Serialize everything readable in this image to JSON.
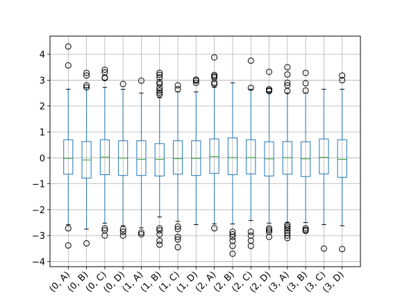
{
  "chart_data": {
    "type": "box",
    "categories": [
      "(0, A)",
      "(0, B)",
      "(0, C)",
      "(0, D)",
      "(1, A)",
      "(1, B)",
      "(1, C)",
      "(1, D)",
      "(2, A)",
      "(2, B)",
      "(2, C)",
      "(2, D)",
      "(3, A)",
      "(3, B)",
      "(3, C)",
      "(3, D)"
    ],
    "yticks": [
      "4",
      "3",
      "2",
      "1",
      "0",
      "−1",
      "−2",
      "−3",
      "−4"
    ],
    "ytick_values": [
      4,
      3,
      2,
      1,
      0,
      -1,
      -2,
      -3,
      -4
    ],
    "ylim": [
      -4.2,
      4.7
    ],
    "grid": true,
    "xtick_rotation": -45,
    "colors": {
      "box": "#1f77b4",
      "median": "#2ca02c",
      "whisker": "#000000",
      "flier": "#000000",
      "grid": "#b0b0b0"
    },
    "boxes": [
      {
        "q1": -0.63,
        "median": -0.02,
        "q3": 0.7,
        "whislo": -2.58,
        "whishi": 2.65,
        "fliers": [
          4.3,
          3.57,
          -2.72,
          -3.38
        ]
      },
      {
        "q1": -0.78,
        "median": -0.08,
        "q3": 0.63,
        "whislo": -2.75,
        "whishi": 2.7,
        "fliers": [
          3.28,
          3.18,
          2.8,
          2.72,
          -3.3
        ]
      },
      {
        "q1": -0.65,
        "median": 0.03,
        "q3": 0.7,
        "whislo": -2.52,
        "whishi": 2.72,
        "fliers": [
          3.4,
          3.3,
          3.1,
          3.08,
          -2.72,
          -2.8,
          -3.0
        ]
      },
      {
        "q1": -0.68,
        "median": -0.01,
        "q3": 0.66,
        "whislo": -2.62,
        "whishi": 2.65,
        "fliers": [
          2.85,
          -2.75,
          -2.85,
          -3.0
        ]
      },
      {
        "q1": -0.68,
        "median": -0.06,
        "q3": 0.66,
        "whislo": -2.7,
        "whishi": 2.5,
        "fliers": [
          2.98,
          -2.88,
          -2.95
        ]
      },
      {
        "q1": -0.7,
        "median": -0.06,
        "q3": 0.55,
        "whislo": -2.28,
        "whishi": 2.32,
        "fliers": [
          3.28,
          3.2,
          3.1,
          2.92,
          2.85,
          2.7,
          2.6,
          2.52,
          2.45,
          -2.72,
          -2.8,
          -2.95,
          -3.2,
          -3.35
        ]
      },
      {
        "q1": -0.63,
        "median": -0.03,
        "q3": 0.66,
        "whislo": -2.45,
        "whishi": 2.55,
        "fliers": [
          2.8,
          2.65,
          -2.65,
          -2.75,
          -3.05,
          -3.15,
          -3.45
        ]
      },
      {
        "q1": -0.68,
        "median": -0.02,
        "q3": 0.66,
        "whislo": -2.58,
        "whishi": 2.55,
        "fliers": [
          3.02,
          2.98,
          2.9
        ]
      },
      {
        "q1": -0.6,
        "median": 0.05,
        "q3": 0.73,
        "whislo": -2.55,
        "whishi": 2.72,
        "fliers": [
          3.88,
          3.2,
          3.15,
          3.1,
          2.9,
          2.85,
          -2.72
        ]
      },
      {
        "q1": -0.65,
        "median": 0.01,
        "q3": 0.77,
        "whislo": -2.55,
        "whishi": 2.9,
        "fliers": [
          -2.85,
          -2.95,
          -3.05,
          -3.2,
          -3.4,
          -3.7
        ]
      },
      {
        "q1": -0.62,
        "median": 0.01,
        "q3": 0.7,
        "whislo": -2.42,
        "whishi": 2.65,
        "fliers": [
          3.75,
          2.7,
          -2.85,
          -3.0,
          -3.2,
          -3.4
        ]
      },
      {
        "q1": -0.7,
        "median": -0.04,
        "q3": 0.62,
        "whislo": -2.52,
        "whishi": 2.55,
        "fliers": [
          3.32,
          2.65,
          2.6,
          2.58,
          -2.72,
          -2.78,
          -2.85,
          -3.05
        ]
      },
      {
        "q1": -0.63,
        "median": 0.01,
        "q3": 0.63,
        "whislo": -2.5,
        "whishi": 2.5,
        "fliers": [
          3.5,
          3.22,
          2.9,
          2.8,
          2.58,
          -2.58,
          -2.65,
          -2.72,
          -2.8,
          -2.9,
          -3.0,
          -3.1
        ]
      },
      {
        "q1": -0.72,
        "median": -0.04,
        "q3": 0.62,
        "whislo": -2.5,
        "whishi": 2.5,
        "fliers": [
          3.28,
          2.88,
          2.6,
          -2.72,
          -2.78,
          -2.82
        ]
      },
      {
        "q1": -0.62,
        "median": 0.02,
        "q3": 0.73,
        "whislo": -2.58,
        "whishi": 2.65,
        "fliers": [
          -3.5
        ]
      },
      {
        "q1": -0.75,
        "median": -0.06,
        "q3": 0.7,
        "whislo": -2.62,
        "whishi": 2.65,
        "fliers": [
          3.18,
          3.0,
          -3.52
        ]
      }
    ]
  }
}
